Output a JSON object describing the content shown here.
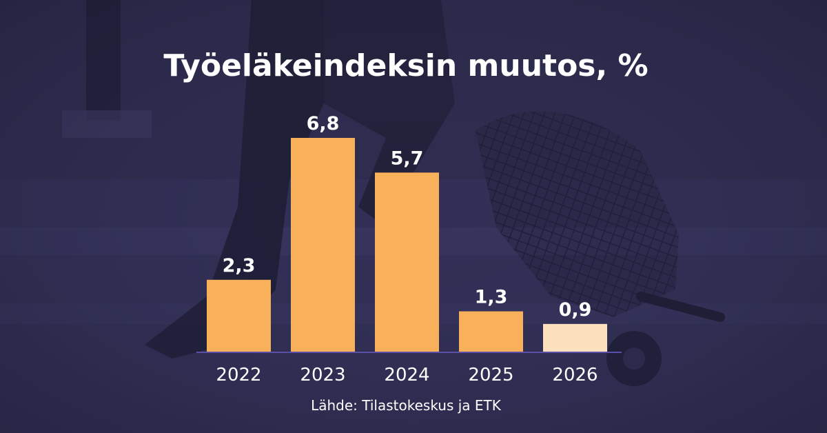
{
  "colors": {
    "background": "#2c2a4a",
    "bar": "#f9b05a",
    "bar_estimate": "#fde1bf",
    "axis": "#5b4fa8",
    "text": "#ffffff"
  },
  "source": "Lähde: Tilastokeskus ja ETK",
  "chart_data": {
    "type": "bar",
    "title": "Työeläkeindeksin muutos, %",
    "xlabel": "",
    "ylabel": "",
    "categories": [
      "2022",
      "2023",
      "2024",
      "2025",
      "2026"
    ],
    "values": [
      2.3,
      6.8,
      5.7,
      1.3,
      0.9
    ],
    "value_labels": [
      "2,3",
      "6,8",
      "5,7",
      "1,3",
      "0,9"
    ],
    "highlighted_last_bar": true,
    "ylim": [
      0,
      6.8
    ],
    "grid": false,
    "legend": "none"
  }
}
